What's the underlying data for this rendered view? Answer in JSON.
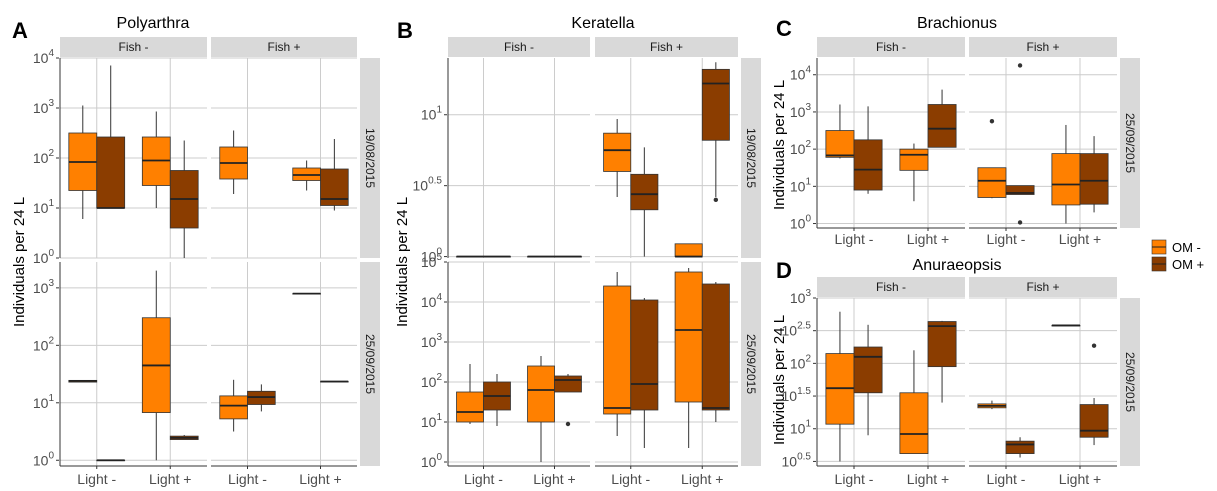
{
  "colors": {
    "om_minus": "#FF8000",
    "om_plus": "#8B3D00",
    "strip": "#D9D9D9",
    "grid": "#CCCCCC",
    "outline": "#333333"
  },
  "legend": {
    "items": [
      {
        "label": "OM -",
        "color": "#FF8000"
      },
      {
        "label": "OM +",
        "color": "#8B3D00"
      }
    ]
  },
  "chart_data": [
    {
      "panel_letter": "A",
      "title": "Polyarthra",
      "type": "boxplot",
      "ylabel": "Individuals per 24 L",
      "xlabel": "",
      "y_scale": "log10",
      "facet_columns": [
        "Fish -",
        "Fish +"
      ],
      "facet_rows": [
        {
          "label": "19/08/2015",
          "ylim": [
            0,
            4
          ],
          "ticks": [
            {
              "v": 0,
              "base": "10",
              "exp": "0"
            },
            {
              "v": 1,
              "base": "10",
              "exp": "1"
            },
            {
              "v": 2,
              "base": "10",
              "exp": "2"
            },
            {
              "v": 3,
              "base": "10",
              "exp": "3"
            },
            {
              "v": 4,
              "base": "10",
              "exp": "4"
            }
          ]
        },
        {
          "label": "25/09/2015",
          "ylim": [
            -0.1,
            3.45
          ],
          "ticks": [
            {
              "v": 0,
              "base": "10",
              "exp": "0"
            },
            {
              "v": 1,
              "base": "10",
              "exp": "1"
            },
            {
              "v": 2,
              "base": "10",
              "exp": "2"
            },
            {
              "v": 3,
              "base": "10",
              "exp": "3"
            }
          ]
        }
      ],
      "x_categories": [
        "Light -",
        "Light +"
      ],
      "series": [
        "OM -",
        "OM +"
      ],
      "boxes": [
        {
          "row": 0,
          "col": 0,
          "x": 0,
          "om": 0,
          "min": 0.78,
          "q1": 1.35,
          "median": 1.92,
          "q3": 2.5,
          "max": 3.05,
          "outliers": []
        },
        {
          "row": 0,
          "col": 0,
          "x": 0,
          "om": 1,
          "min": 1.0,
          "q1": 1.0,
          "median": 1.0,
          "q3": 2.42,
          "max": 3.85,
          "outliers": []
        },
        {
          "row": 0,
          "col": 0,
          "x": 1,
          "om": 0,
          "min": 1.0,
          "q1": 1.45,
          "median": 1.95,
          "q3": 2.42,
          "max": 2.93,
          "outliers": []
        },
        {
          "row": 0,
          "col": 0,
          "x": 1,
          "om": 1,
          "min": 0.0,
          "q1": 0.6,
          "median": 1.18,
          "q3": 1.75,
          "max": 2.35,
          "outliers": []
        },
        {
          "row": 0,
          "col": 1,
          "x": 0,
          "om": 0,
          "min": 1.28,
          "q1": 1.58,
          "median": 1.9,
          "q3": 2.22,
          "max": 2.55,
          "outliers": []
        },
        {
          "row": 0,
          "col": 1,
          "x": 1,
          "om": 0,
          "min": 1.35,
          "q1": 1.55,
          "median": 1.66,
          "q3": 1.8,
          "max": 1.95,
          "outliers": []
        },
        {
          "row": 0,
          "col": 1,
          "x": 1,
          "om": 1,
          "min": 0.95,
          "q1": 1.05,
          "median": 1.18,
          "q3": 1.78,
          "max": 2.38,
          "outliers": []
        },
        {
          "row": 1,
          "col": 0,
          "x": 0,
          "om": 0,
          "min": 1.36,
          "q1": 1.36,
          "median": 1.38,
          "q3": 1.39,
          "max": 1.39,
          "outliers": []
        },
        {
          "row": 1,
          "col": 0,
          "x": 0,
          "om": 1,
          "min": 0.0,
          "q1": 0.0,
          "median": 0.0,
          "q3": 0.0,
          "max": 0.0,
          "outliers": []
        },
        {
          "row": 1,
          "col": 0,
          "x": 1,
          "om": 0,
          "min": 0.0,
          "q1": 0.83,
          "median": 1.65,
          "q3": 2.48,
          "max": 3.3,
          "outliers": []
        },
        {
          "row": 1,
          "col": 0,
          "x": 1,
          "om": 1,
          "min": 0.36,
          "q1": 0.36,
          "median": 0.39,
          "q3": 0.42,
          "max": 0.44,
          "outliers": []
        },
        {
          "row": 1,
          "col": 1,
          "x": 0,
          "om": 0,
          "min": 0.5,
          "q1": 0.72,
          "median": 0.95,
          "q3": 1.12,
          "max": 1.4,
          "outliers": []
        },
        {
          "row": 1,
          "col": 1,
          "x": 0,
          "om": 1,
          "min": 0.85,
          "q1": 0.97,
          "median": 1.1,
          "q3": 1.2,
          "max": 1.32,
          "outliers": []
        },
        {
          "row": 1,
          "col": 1,
          "x": 1,
          "om": 0,
          "min": 2.9,
          "q1": 2.9,
          "median": 2.9,
          "q3": 2.9,
          "max": 2.9,
          "outliers": []
        },
        {
          "row": 1,
          "col": 1,
          "x": 1,
          "om": 1,
          "min": 1.37,
          "q1": 1.37,
          "median": 1.37,
          "q3": 1.37,
          "max": 1.37,
          "outliers": []
        }
      ]
    },
    {
      "panel_letter": "B",
      "title": "Keratella",
      "type": "boxplot",
      "ylabel": "Individuals per 24 L",
      "xlabel": "",
      "y_scale": "log10",
      "facet_columns": [
        "Fish -",
        "Fish +"
      ],
      "facet_rows": [
        {
          "label": "19/08/2015",
          "ylim": [
            -0.01,
            1.4
          ],
          "ticks": [
            {
              "v": 0,
              "base": "10",
              "exp": "0"
            },
            {
              "v": 0.5,
              "base": "10",
              "exp": "0.5"
            },
            {
              "v": 1,
              "base": "10",
              "exp": "1"
            }
          ]
        },
        {
          "label": "25/09/2015",
          "ylim": [
            -0.1,
            5
          ],
          "ticks": [
            {
              "v": 0,
              "base": "10",
              "exp": "0"
            },
            {
              "v": 1,
              "base": "10",
              "exp": "1"
            },
            {
              "v": 2,
              "base": "10",
              "exp": "2"
            },
            {
              "v": 3,
              "base": "10",
              "exp": "3"
            },
            {
              "v": 4,
              "base": "10",
              "exp": "4"
            },
            {
              "v": 5,
              "base": "10",
              "exp": "5"
            }
          ]
        }
      ],
      "x_categories": [
        "Light -",
        "Light +"
      ],
      "series": [
        "OM -",
        "OM +"
      ],
      "boxes": [
        {
          "row": 0,
          "col": 0,
          "x": 0,
          "om": 0,
          "min": 0.0,
          "q1": 0.0,
          "median": 0.0,
          "q3": 0.0,
          "max": 0.0,
          "outliers": []
        },
        {
          "row": 0,
          "col": 0,
          "x": 0,
          "om": 1,
          "min": 0.0,
          "q1": 0.0,
          "median": 0.0,
          "q3": 0.0,
          "max": 0.0,
          "outliers": []
        },
        {
          "row": 0,
          "col": 0,
          "x": 1,
          "om": 0,
          "min": 0.0,
          "q1": 0.0,
          "median": 0.0,
          "q3": 0.0,
          "max": 0.0,
          "outliers": []
        },
        {
          "row": 0,
          "col": 0,
          "x": 1,
          "om": 1,
          "min": 0.0,
          "q1": 0.0,
          "median": 0.0,
          "q3": 0.0,
          "max": 0.0,
          "outliers": []
        },
        {
          "row": 0,
          "col": 1,
          "x": 0,
          "om": 0,
          "min": 0.42,
          "q1": 0.6,
          "median": 0.75,
          "q3": 0.87,
          "max": 0.97,
          "outliers": []
        },
        {
          "row": 0,
          "col": 1,
          "x": 0,
          "om": 1,
          "min": 0.0,
          "q1": 0.33,
          "median": 0.44,
          "q3": 0.58,
          "max": 0.77,
          "outliers": []
        },
        {
          "row": 0,
          "col": 1,
          "x": 1,
          "om": 0,
          "min": 0.0,
          "q1": 0.0,
          "median": 0.0,
          "q3": 0.09,
          "max": 0.09,
          "outliers": []
        },
        {
          "row": 0,
          "col": 1,
          "x": 1,
          "om": 1,
          "min": 0.42,
          "q1": 0.82,
          "median": 1.22,
          "q3": 1.32,
          "max": 1.37,
          "outliers": [
            0.4
          ]
        },
        {
          "row": 1,
          "col": 0,
          "x": 0,
          "om": 0,
          "min": 0.95,
          "q1": 1.0,
          "median": 1.25,
          "q3": 1.75,
          "max": 2.45,
          "outliers": []
        },
        {
          "row": 1,
          "col": 0,
          "x": 0,
          "om": 1,
          "min": 0.9,
          "q1": 1.3,
          "median": 1.65,
          "q3": 2.0,
          "max": 2.2,
          "outliers": []
        },
        {
          "row": 1,
          "col": 0,
          "x": 1,
          "om": 0,
          "min": 0.0,
          "q1": 1.0,
          "median": 1.8,
          "q3": 2.4,
          "max": 2.65,
          "outliers": []
        },
        {
          "row": 1,
          "col": 0,
          "x": 1,
          "om": 1,
          "min": 1.75,
          "q1": 1.75,
          "median": 2.05,
          "q3": 2.15,
          "max": 2.2,
          "outliers": [
            0.95
          ]
        },
        {
          "row": 1,
          "col": 1,
          "x": 0,
          "om": 0,
          "min": 0.65,
          "q1": 1.2,
          "median": 1.35,
          "q3": 4.4,
          "max": 4.75,
          "outliers": []
        },
        {
          "row": 1,
          "col": 1,
          "x": 0,
          "om": 1,
          "min": 0.35,
          "q1": 1.3,
          "median": 1.95,
          "q3": 4.05,
          "max": 4.1,
          "outliers": []
        },
        {
          "row": 1,
          "col": 1,
          "x": 1,
          "om": 0,
          "min": 0.35,
          "q1": 1.5,
          "median": 3.3,
          "q3": 4.75,
          "max": 4.85,
          "outliers": []
        },
        {
          "row": 1,
          "col": 1,
          "x": 1,
          "om": 1,
          "min": 1.0,
          "q1": 1.3,
          "median": 1.35,
          "q3": 4.45,
          "max": 4.5,
          "outliers": []
        }
      ]
    },
    {
      "panel_letter": "C",
      "title": "Brachionus",
      "type": "boxplot",
      "ylabel": "Individuals per 24 L",
      "xlabel": "",
      "y_scale": "log10",
      "facet_columns": [
        "Fish -",
        "Fish +"
      ],
      "facet_rows": [
        {
          "label": "25/09/2015",
          "ylim": [
            -0.12,
            4.45
          ],
          "ticks": [
            {
              "v": 0,
              "base": "10",
              "exp": "0"
            },
            {
              "v": 1,
              "base": "10",
              "exp": "1"
            },
            {
              "v": 2,
              "base": "10",
              "exp": "2"
            },
            {
              "v": 3,
              "base": "10",
              "exp": "3"
            },
            {
              "v": 4,
              "base": "10",
              "exp": "4"
            }
          ]
        }
      ],
      "x_categories": [
        "Light -",
        "Light +"
      ],
      "series": [
        "OM -",
        "OM +"
      ],
      "boxes": [
        {
          "row": 0,
          "col": 0,
          "x": 0,
          "om": 0,
          "min": 1.75,
          "q1": 1.78,
          "median": 1.83,
          "q3": 2.5,
          "max": 3.2,
          "outliers": []
        },
        {
          "row": 0,
          "col": 0,
          "x": 0,
          "om": 1,
          "min": 0.8,
          "q1": 0.9,
          "median": 1.45,
          "q3": 2.25,
          "max": 3.15,
          "outliers": []
        },
        {
          "row": 0,
          "col": 0,
          "x": 1,
          "om": 0,
          "min": 0.6,
          "q1": 1.43,
          "median": 1.85,
          "q3": 2.0,
          "max": 2.15,
          "outliers": []
        },
        {
          "row": 0,
          "col": 0,
          "x": 1,
          "om": 1,
          "min": 2.05,
          "q1": 2.05,
          "median": 2.55,
          "q3": 3.2,
          "max": 3.6,
          "outliers": []
        },
        {
          "row": 0,
          "col": 1,
          "x": 0,
          "om": 0,
          "min": 0.68,
          "q1": 0.7,
          "median": 1.15,
          "q3": 1.5,
          "max": 1.5,
          "outliers": [
            2.75
          ]
        },
        {
          "row": 0,
          "col": 1,
          "x": 0,
          "om": 1,
          "min": 0.78,
          "q1": 0.78,
          "median": 0.82,
          "q3": 1.02,
          "max": 1.02,
          "outliers": [
            4.25,
            0.03
          ]
        },
        {
          "row": 0,
          "col": 1,
          "x": 1,
          "om": 0,
          "min": 0.0,
          "q1": 0.5,
          "median": 1.05,
          "q3": 1.88,
          "max": 2.65,
          "outliers": []
        },
        {
          "row": 0,
          "col": 1,
          "x": 1,
          "om": 1,
          "min": 0.3,
          "q1": 0.52,
          "median": 1.15,
          "q3": 1.88,
          "max": 2.35,
          "outliers": []
        }
      ]
    },
    {
      "panel_letter": "D",
      "title": "Anuraeopsis",
      "type": "boxplot",
      "ylabel": "Individuals per 24 L",
      "xlabel": "",
      "y_scale": "log10",
      "facet_columns": [
        "Fish -",
        "Fish +"
      ],
      "facet_rows": [
        {
          "label": "25/09/2015",
          "ylim": [
            0.43,
            3.0
          ],
          "ticks": [
            {
              "v": 0.5,
              "base": "10",
              "exp": "0.5"
            },
            {
              "v": 1,
              "base": "10",
              "exp": "1"
            },
            {
              "v": 1.5,
              "base": "10",
              "exp": "1.5"
            },
            {
              "v": 2,
              "base": "10",
              "exp": "2"
            },
            {
              "v": 2.5,
              "base": "10",
              "exp": "2.5"
            },
            {
              "v": 3,
              "base": "10",
              "exp": "3"
            }
          ]
        }
      ],
      "x_categories": [
        "Light -",
        "Light +"
      ],
      "series": [
        "OM -",
        "OM +"
      ],
      "boxes": [
        {
          "row": 0,
          "col": 0,
          "x": 0,
          "om": 0,
          "min": 0.5,
          "q1": 1.07,
          "median": 1.62,
          "q3": 2.15,
          "max": 2.79,
          "outliers": []
        },
        {
          "row": 0,
          "col": 0,
          "x": 0,
          "om": 1,
          "min": 0.9,
          "q1": 1.55,
          "median": 2.1,
          "q3": 2.25,
          "max": 2.59,
          "outliers": []
        },
        {
          "row": 0,
          "col": 0,
          "x": 1,
          "om": 0,
          "min": 0.62,
          "q1": 0.62,
          "median": 0.92,
          "q3": 1.55,
          "max": 2.2,
          "outliers": []
        },
        {
          "row": 0,
          "col": 0,
          "x": 1,
          "om": 1,
          "min": 1.4,
          "q1": 1.95,
          "median": 2.57,
          "q3": 2.64,
          "max": 2.65,
          "outliers": []
        },
        {
          "row": 0,
          "col": 1,
          "x": 0,
          "om": 0,
          "min": 1.3,
          "q1": 1.32,
          "median": 1.35,
          "q3": 1.38,
          "max": 1.43,
          "outliers": []
        },
        {
          "row": 0,
          "col": 1,
          "x": 0,
          "om": 1,
          "min": 0.56,
          "q1": 0.62,
          "median": 0.76,
          "q3": 0.81,
          "max": 0.87,
          "outliers": []
        },
        {
          "row": 0,
          "col": 1,
          "x": 1,
          "om": 0,
          "min": 2.58,
          "q1": 2.58,
          "median": 2.58,
          "q3": 2.58,
          "max": 2.58,
          "outliers": []
        },
        {
          "row": 0,
          "col": 1,
          "x": 1,
          "om": 1,
          "min": 0.75,
          "q1": 0.87,
          "median": 0.97,
          "q3": 1.37,
          "max": 1.47,
          "outliers": [
            2.27
          ]
        }
      ]
    }
  ]
}
